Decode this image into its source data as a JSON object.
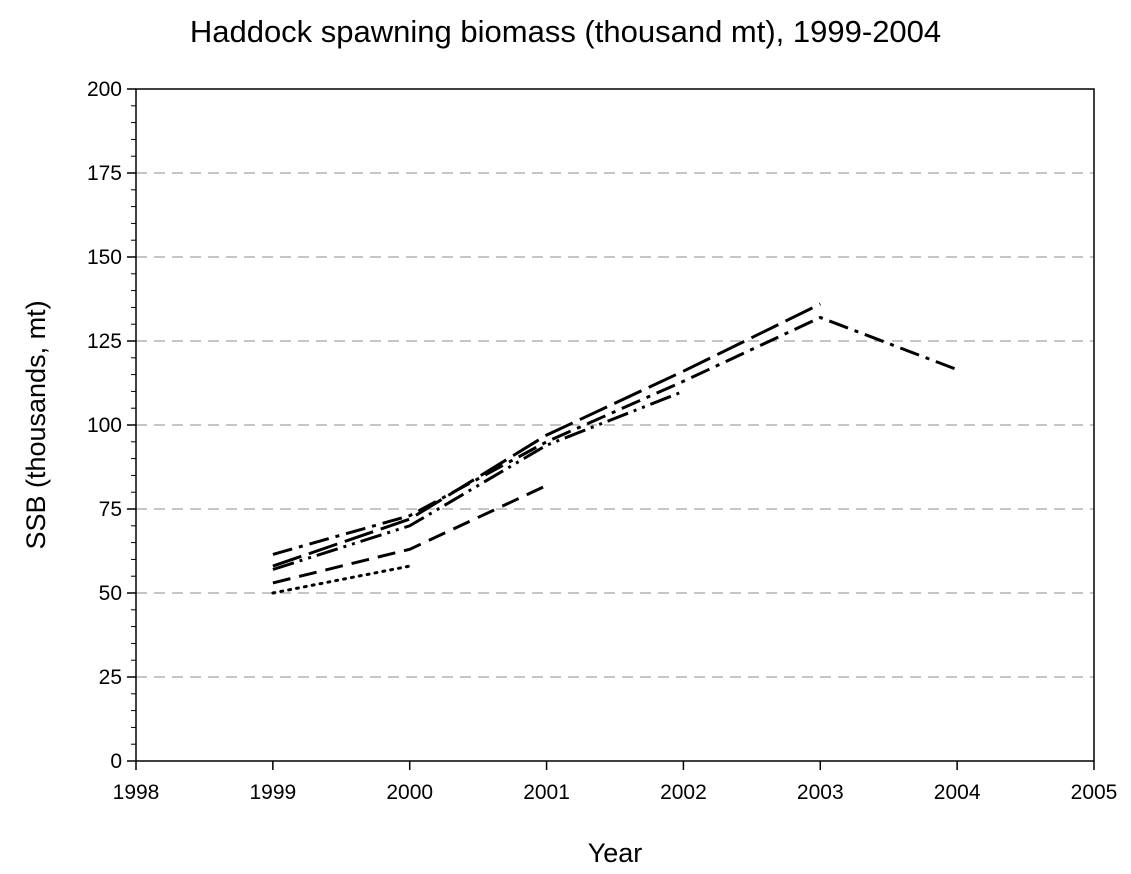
{
  "chart_data": {
    "type": "line",
    "title": "Haddock spawning biomass (thousand mt), 1999-2004",
    "xlabel": "Year",
    "ylabel": "SSB (thousands, mt)",
    "xlim": [
      1998,
      2005
    ],
    "ylim": [
      0,
      200
    ],
    "x_ticks": [
      "1998",
      "1999",
      "2000",
      "2001",
      "2002",
      "2003",
      "2004",
      "2005"
    ],
    "y_ticks": [
      "0",
      "25",
      "50",
      "75",
      "100",
      "125",
      "150",
      "175",
      "200"
    ],
    "grid": "horizontal dashed",
    "legend": "none",
    "series": [
      {
        "style": "dotted",
        "x": [
          1999,
          2000
        ],
        "y": [
          50,
          58
        ]
      },
      {
        "style": "dashed",
        "x": [
          1999,
          2000,
          2001
        ],
        "y": [
          53,
          63,
          82
        ]
      },
      {
        "style": "dash-dot-dot",
        "x": [
          1999,
          2000,
          2001,
          2002
        ],
        "y": [
          57,
          70,
          94,
          110
        ]
      },
      {
        "style": "long-dash",
        "x": [
          1999,
          2000,
          2001,
          2002,
          2003
        ],
        "y": [
          58,
          72,
          97,
          116,
          136
        ]
      },
      {
        "style": "dash-dot",
        "x": [
          1999,
          2000,
          2001,
          2002,
          2003,
          2004
        ],
        "y": [
          61.5,
          73,
          95,
          113,
          132,
          116.5
        ]
      }
    ]
  }
}
